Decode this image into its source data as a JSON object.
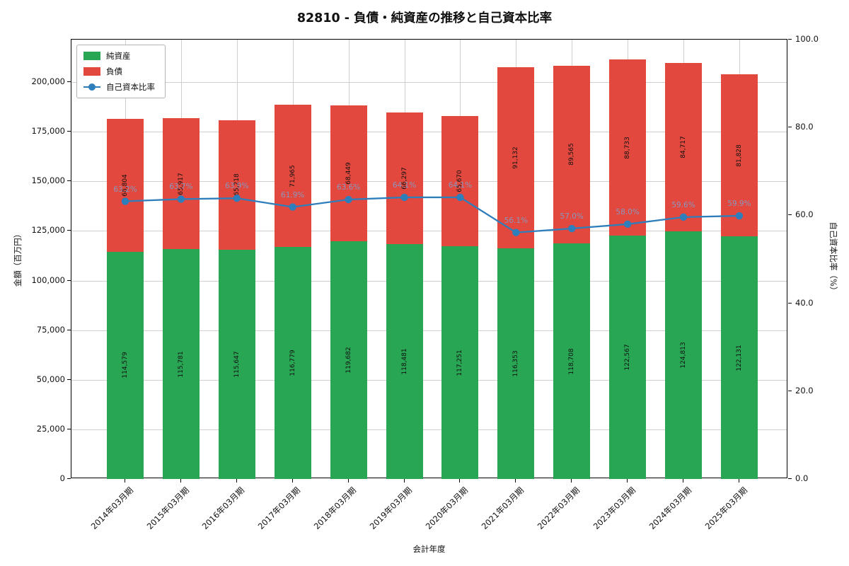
{
  "chart_data": {
    "type": "bar",
    "subtype": "stacked-bars-with-line",
    "title": "82810 - 負債・純資産の推移と自己資本比率",
    "xlabel": "会計年度",
    "ylabel_left": "金額（百万円）",
    "ylabel_right": "自己資本比率（%）",
    "categories": [
      "2014年03月期",
      "2015年03月期",
      "2016年03月期",
      "2017年03月期",
      "2018年03月期",
      "2019年03月期",
      "2020年03月期",
      "2021年03月期",
      "2022年03月期",
      "2023年03月期",
      "2024年03月期",
      "2025年03月期"
    ],
    "series": [
      {
        "name": "純資産",
        "type": "bar",
        "color": "#29a654",
        "values": [
          114579,
          115781,
          115647,
          116779,
          119682,
          118481,
          117251,
          116353,
          118708,
          122567,
          124813,
          122131
        ]
      },
      {
        "name": "負債",
        "type": "bar",
        "color": "#e2483d",
        "values": [
          66804,
          65917,
          65218,
          71965,
          68449,
          66297,
          65670,
          91132,
          89565,
          88733,
          84717,
          81828
        ]
      },
      {
        "name": "自己資本比率",
        "type": "line",
        "color": "#2e7ebb",
        "axis": "right",
        "values": [
          63.2,
          63.7,
          63.9,
          61.9,
          63.6,
          64.1,
          64.1,
          56.1,
          57.0,
          58.0,
          59.6,
          59.9
        ]
      }
    ],
    "yticks_left": [
      0,
      25000,
      50000,
      75000,
      100000,
      125000,
      150000,
      175000,
      200000
    ],
    "yticks_right": [
      0,
      20,
      40,
      60,
      80,
      100
    ],
    "ylim_left": [
      0,
      221400
    ],
    "ylim_right": [
      0,
      100
    ],
    "grid": true,
    "legend_position": "upper-left",
    "colors": {
      "grid": "#cfcfcf",
      "spine": "#000000",
      "pct_label": "#8a96bd",
      "bar_label": "#111111"
    }
  }
}
